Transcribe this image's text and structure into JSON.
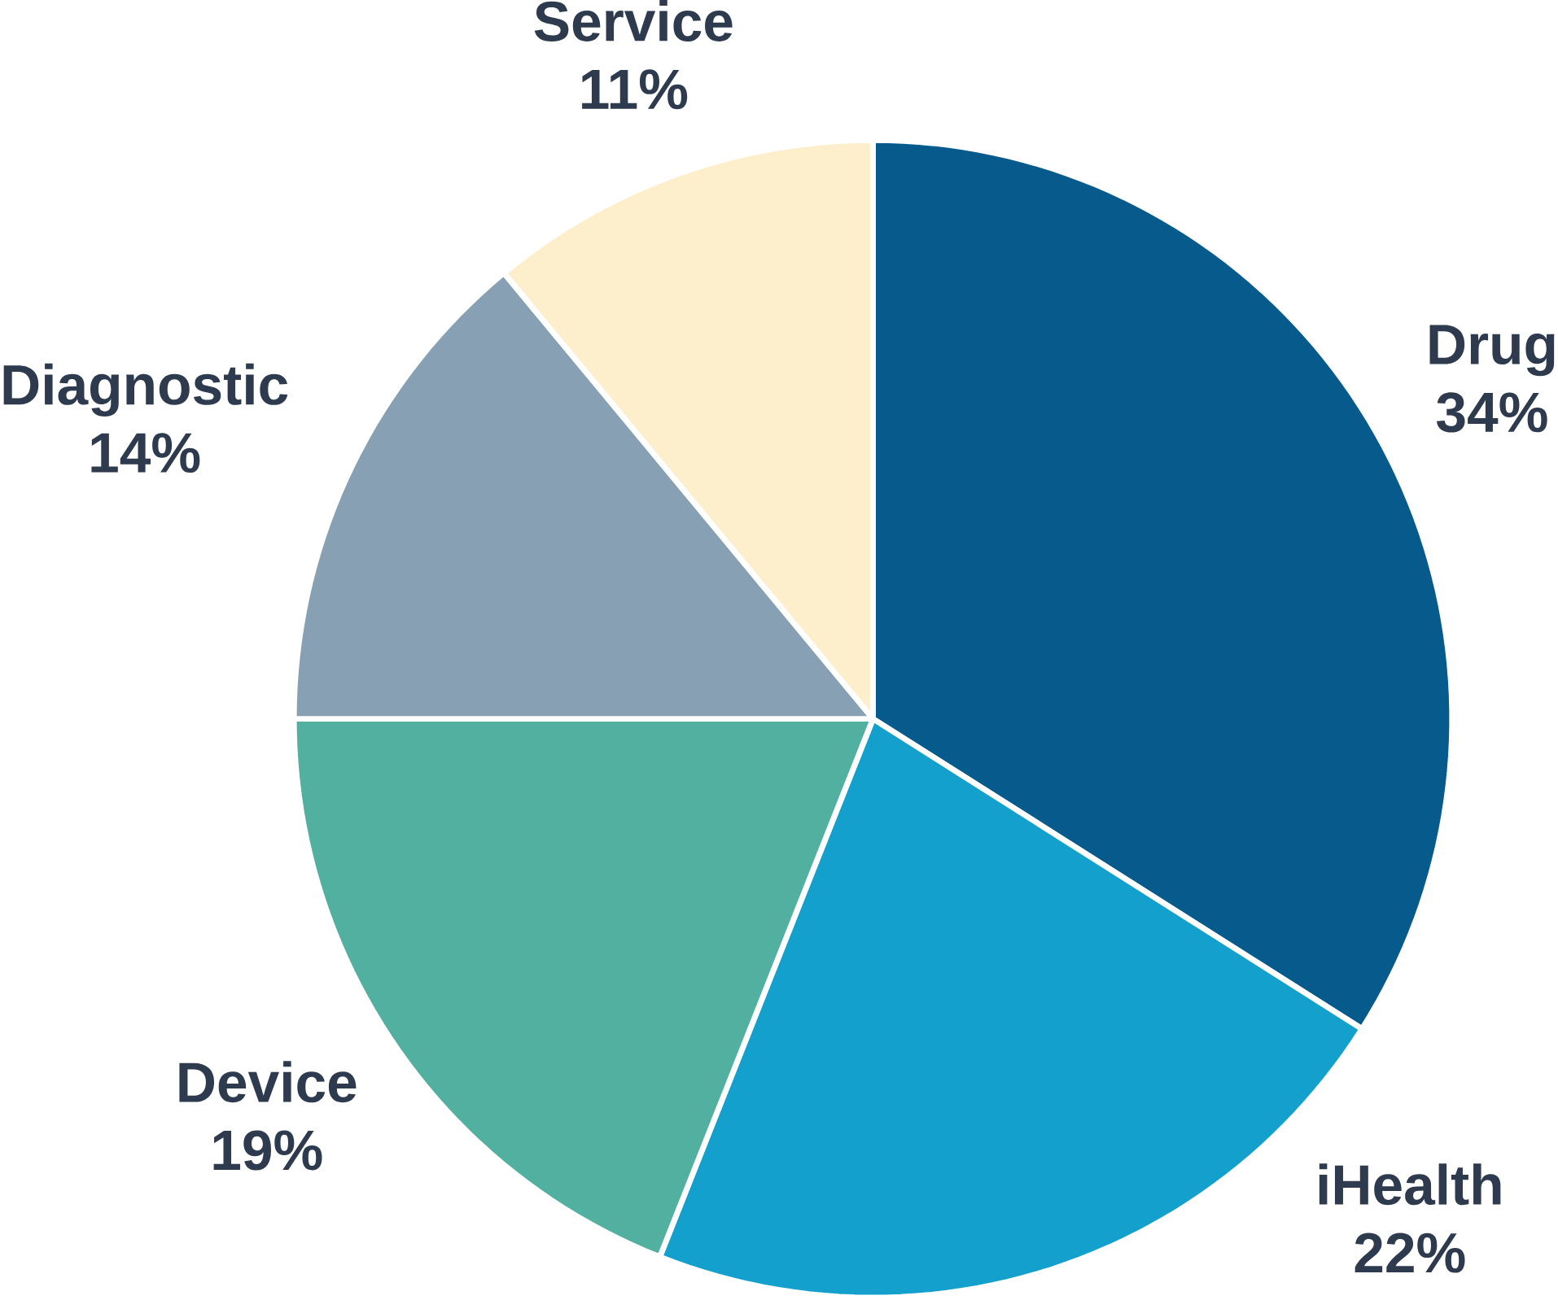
{
  "chart_data": {
    "type": "pie",
    "categories": [
      "Drug",
      "iHealth",
      "Device",
      "Diagnostic",
      "Service"
    ],
    "values": [
      34,
      22,
      19,
      14,
      11
    ],
    "value_labels": [
      "34%",
      "22%",
      "19%",
      "14%",
      "11%"
    ],
    "colors": [
      "#065a8c",
      "#14a0cc",
      "#52b0a0",
      "#87a0b3",
      "#fdefcc"
    ]
  }
}
